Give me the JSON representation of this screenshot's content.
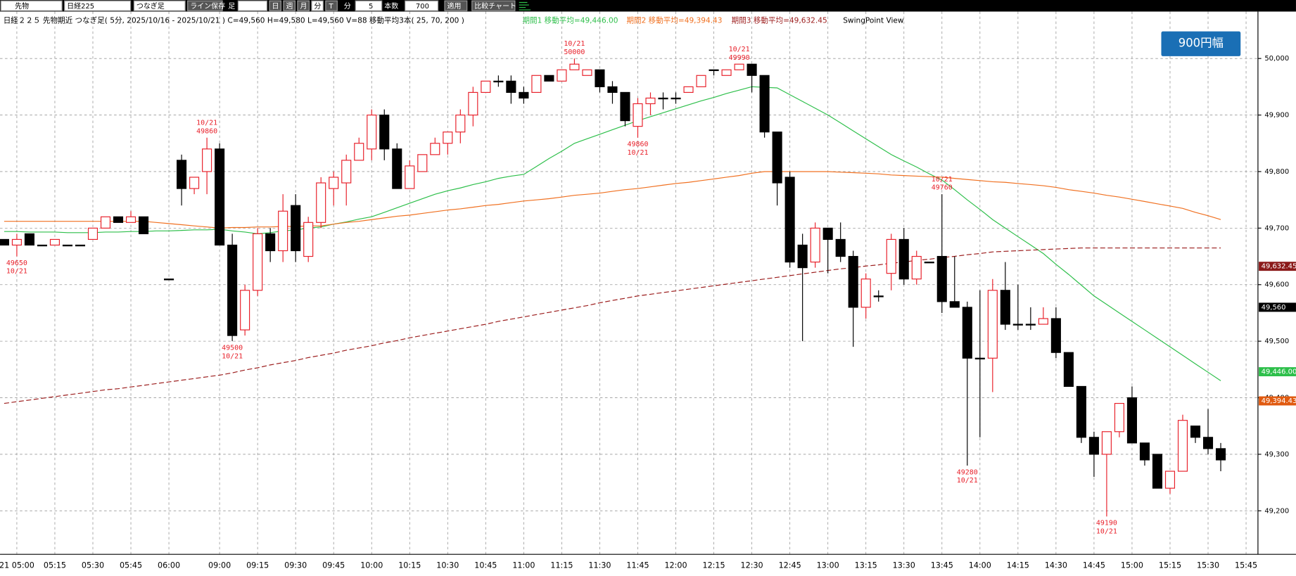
{
  "toolbar": {
    "market": "先物",
    "symbol": "日経225",
    "mode": "つなぎ足",
    "save": "ライン保存",
    "bar": "足",
    "day": "日",
    "week": "週",
    "month": "月",
    "minute": "分",
    "tick": "T",
    "unit": "分",
    "interval": "5",
    "count_label": "本数",
    "count": "700",
    "apply": "適用",
    "compare": "比較チャート"
  },
  "info": {
    "main": "日経２２５ 先物期近 つなぎ足( 5分, 2025/10/16 - 2025/10/21 ) C=49,560 H=49,580 L=49,560 V=88 移動平均3本( 25, 70, 200 )",
    "ma1": "期間1 移動平均=49,446.00",
    "ma2": "期間2 移動平均=49,394.43",
    "ma3": "期間3 移動平均=49,632.45",
    "view": "SwingPoint View"
  },
  "button": "900円幅",
  "chart_data": {
    "type": "candlestick",
    "categories": [
      null,
      "21 05:00",
      null,
      null,
      "05:15",
      null,
      null,
      "05:30",
      null,
      null,
      "05:45",
      null,
      null,
      "06:00",
      null,
      null,
      null,
      "09:00",
      null,
      null,
      "09:15",
      null,
      null,
      "09:30",
      null,
      null,
      "09:45",
      null,
      null,
      "10:00",
      null,
      null,
      "10:15",
      null,
      null,
      "10:30",
      null,
      null,
      "10:45",
      null,
      null,
      "11:00",
      null,
      null,
      "11:15",
      null,
      null,
      "11:30",
      null,
      null,
      "11:45",
      null,
      null,
      "12:00",
      null,
      null,
      "12:15",
      null,
      null,
      "12:30",
      null,
      null,
      "12:45",
      null,
      null,
      "13:00",
      null,
      null,
      "13:15",
      null,
      null,
      "13:30",
      null,
      null,
      "13:45",
      null,
      null,
      "14:00",
      null,
      null,
      "14:15",
      null,
      null,
      "14:30",
      null,
      null,
      "14:45",
      null,
      null,
      "15:00",
      null,
      null,
      "15:15",
      null,
      null,
      "15:30",
      null,
      null,
      "15:45"
    ],
    "open": [
      49680,
      49670,
      49690,
      49670,
      49670,
      49670,
      49670,
      49680,
      49700,
      49720,
      49710,
      49720,
      null,
      49610,
      49820,
      49770,
      49800,
      49840,
      49670,
      49520,
      49590,
      49690,
      49660,
      49740,
      49650,
      49710,
      49770,
      49780,
      49820,
      49840,
      49900,
      49840,
      49770,
      49800,
      49830,
      49850,
      49870,
      49900,
      49940,
      49960,
      49960,
      49940,
      49940,
      49970,
      49960,
      49980,
      49970,
      49980,
      49950,
      49940,
      49880,
      49920,
      49930,
      49930,
      49940,
      49950,
      49980,
      49970,
      49980,
      49990,
      49970,
      49870,
      49790,
      49670,
      49640,
      49700,
      49680,
      49650,
      49560,
      49580,
      49620,
      49680,
      49610,
      49640,
      49650,
      49570,
      49560,
      49470,
      49470,
      49590,
      49530,
      49530,
      49530,
      49540,
      49480,
      49420,
      49330,
      49300,
      49340,
      49400,
      49320,
      49300,
      49240,
      49270,
      49350,
      49330,
      49310,
      null,
      null
    ],
    "high": [
      49680,
      49690,
      49690,
      49670,
      49680,
      49670,
      49670,
      49700,
      49720,
      49720,
      49730,
      49720,
      null,
      49610,
      49830,
      49790,
      49860,
      49850,
      49690,
      49600,
      49700,
      49700,
      49760,
      49760,
      49720,
      49790,
      49800,
      49830,
      49860,
      49910,
      49910,
      49850,
      49820,
      49830,
      49860,
      49870,
      49910,
      49950,
      49960,
      49970,
      49970,
      49950,
      49970,
      49970,
      49980,
      50000,
      49980,
      49980,
      49960,
      49940,
      49930,
      49940,
      49940,
      49940,
      49950,
      49970,
      49980,
      49980,
      49990,
      49990,
      49970,
      49870,
      49800,
      49690,
      49710,
      49700,
      49710,
      49660,
      49620,
      49590,
      49690,
      49700,
      49660,
      49640,
      49760,
      49650,
      49570,
      49590,
      49610,
      49640,
      49600,
      49560,
      49560,
      49560,
      49480,
      49420,
      49340,
      49340,
      49390,
      49420,
      49320,
      49300,
      49270,
      49370,
      49350,
      49380,
      49320,
      null,
      null
    ],
    "low": [
      49670,
      49650,
      49670,
      49670,
      49670,
      49670,
      49670,
      49680,
      49700,
      49710,
      49710,
      49690,
      null,
      49610,
      49740,
      49760,
      49760,
      49670,
      49500,
      49510,
      49580,
      49640,
      49640,
      49640,
      49640,
      49700,
      49740,
      49740,
      49820,
      49820,
      49820,
      49770,
      49770,
      49800,
      49830,
      49830,
      49850,
      49880,
      49940,
      49950,
      49920,
      49920,
      49940,
      49960,
      49960,
      49980,
      49970,
      49940,
      49920,
      49880,
      49860,
      49900,
      49910,
      49920,
      49940,
      49950,
      49970,
      49970,
      49980,
      49940,
      49860,
      49740,
      49630,
      49500,
      49630,
      49620,
      49640,
      49490,
      49540,
      49570,
      49590,
      49600,
      49600,
      49640,
      49550,
      49560,
      49280,
      49330,
      49410,
      49520,
      49520,
      49520,
      49530,
      49470,
      49420,
      49320,
      49260,
      49190,
      49330,
      49320,
      49280,
      49240,
      49230,
      49270,
      49320,
      49300,
      49270,
      null,
      null
    ],
    "close": [
      49670,
      49680,
      49670,
      49670,
      49680,
      49670,
      49670,
      49700,
      49720,
      49710,
      49720,
      49690,
      null,
      49610,
      49770,
      49790,
      49840,
      49670,
      49510,
      49590,
      49690,
      49660,
      49730,
      49660,
      49710,
      49780,
      49790,
      49820,
      49850,
      49900,
      49840,
      49770,
      49810,
      49830,
      49850,
      49870,
      49900,
      49940,
      49960,
      49960,
      49940,
      49930,
      49970,
      49960,
      49980,
      49990,
      49980,
      49950,
      49940,
      49890,
      49920,
      49930,
      49930,
      49930,
      49950,
      49970,
      49980,
      49980,
      49990,
      49970,
      49870,
      49780,
      49640,
      49630,
      49700,
      49680,
      49650,
      49560,
      49610,
      49580,
      49680,
      49610,
      49650,
      49640,
      49570,
      49560,
      49470,
      49470,
      49590,
      49530,
      49530,
      49530,
      49540,
      49480,
      49420,
      49330,
      49300,
      49340,
      49390,
      49320,
      49290,
      49240,
      49270,
      49360,
      49330,
      49310,
      49290,
      null,
      null
    ],
    "up_color": "#e8202a",
    "down_color": "#000000",
    "series": [
      {
        "color": "#2dbf4a",
        "dashed": false,
        "values": [
          49694,
          49694,
          49693,
          49693,
          49693,
          49692,
          49692,
          49692,
          49693,
          49693,
          49694,
          49694,
          49695,
          49695,
          49696,
          49697,
          49697,
          49698,
          49695,
          49693,
          49690,
          49692,
          49695,
          49697,
          49700,
          49702,
          49707,
          49711,
          49716,
          49720,
          49728,
          49736,
          49744,
          49752,
          49760,
          49766,
          49771,
          49777,
          49782,
          49788,
          49792,
          49795,
          49809,
          49823,
          49836,
          49850,
          49858,
          49866,
          49874,
          49882,
          49890,
          49897,
          49904,
          49911,
          49918,
          49925,
          49931,
          49938,
          49944,
          49950,
          49949,
          49948,
          49936,
          49924,
          49912,
          49900,
          49886,
          49872,
          49858,
          49844,
          49830,
          49819,
          49808,
          49796,
          49785,
          49768,
          49750,
          49733,
          49715,
          49700,
          49685,
          49670,
          49655,
          49636,
          49618,
          49599,
          49580,
          49565,
          49550,
          49535,
          49520,
          49505,
          49490,
          49475,
          49460,
          49445,
          49430,
          null,
          null
        ]
      },
      {
        "color": "#f07020",
        "dashed": false,
        "values": [
          49712,
          49712,
          49712,
          49712,
          49712,
          49712,
          49712,
          49712,
          49712,
          49712,
          49712,
          49712,
          49710,
          49708,
          49706,
          49704,
          49702,
          49700,
          49701,
          49701,
          49702,
          49702,
          49703,
          49703,
          49704,
          49704,
          49707,
          49710,
          49712,
          49715,
          49718,
          49721,
          49723,
          49726,
          49729,
          49732,
          49734,
          49737,
          49740,
          49742,
          49745,
          49748,
          49750,
          49752,
          49755,
          49758,
          49760,
          49762,
          49765,
          49768,
          49770,
          49773,
          49776,
          49779,
          49781,
          49784,
          49787,
          49790,
          49793,
          49797,
          49800,
          49800,
          49800,
          49800,
          49800,
          49800,
          49799,
          49798,
          49797,
          49796,
          49794,
          49793,
          49792,
          49791,
          49790,
          49788,
          49786,
          49784,
          49782,
          49781,
          49779,
          49777,
          49775,
          49772,
          49768,
          49765,
          49762,
          49758,
          49755,
          49751,
          49747,
          49743,
          49739,
          49735,
          49728,
          49722,
          49715,
          null,
          null
        ]
      },
      {
        "color": "#9b1b1b",
        "dashed": true,
        "values": [
          49390,
          49393,
          49396,
          49399,
          49402,
          49405,
          49408,
          49411,
          49414,
          49416,
          49419,
          49422,
          49425,
          49428,
          49431,
          49434,
          49437,
          49440,
          49444,
          49449,
          49453,
          49458,
          49462,
          49466,
          49471,
          49475,
          49479,
          49484,
          49488,
          49492,
          49497,
          49501,
          49506,
          49510,
          49514,
          49518,
          49522,
          49526,
          49530,
          49535,
          49539,
          49543,
          49547,
          49551,
          49555,
          49559,
          49563,
          49568,
          49572,
          49576,
          49580,
          49583,
          49586,
          49589,
          49592,
          49595,
          49598,
          49601,
          49604,
          49607,
          49610,
          49613,
          49616,
          49619,
          49622,
          49625,
          49628,
          49630,
          49633,
          49635,
          49638,
          49640,
          49643,
          49645,
          49648,
          49650,
          49653,
          49655,
          49658,
          49659,
          49660,
          49661,
          49662,
          49663,
          49664,
          49665,
          49665,
          49665,
          49665,
          49665,
          49665,
          49665,
          49665,
          49665,
          49665,
          49665,
          49665,
          null,
          null
        ]
      }
    ],
    "swing_points": [
      {
        "kind": "low",
        "price": 49650,
        "date": "10/21"
      },
      {
        "kind": "high",
        "price": 49860,
        "date": "10/21"
      },
      {
        "kind": "low",
        "price": 49500,
        "date": "10/21"
      },
      {
        "kind": "high",
        "price": 50000,
        "date": "10/21"
      },
      {
        "kind": "low",
        "price": 49860,
        "date": "10/21"
      },
      {
        "kind": "high",
        "price": 49990,
        "date": "10/21"
      },
      {
        "kind": "high",
        "price": 49760,
        "date": "10/21"
      },
      {
        "kind": "low",
        "price": 49280,
        "date": "10/21"
      },
      {
        "kind": "low",
        "price": 49190,
        "date": "10/21"
      }
    ],
    "price_marks": [
      {
        "value": 49632.45,
        "label": "49,632.45",
        "color": "#8b1a1a"
      },
      {
        "value": 49560,
        "label": "49,560",
        "color": "#000000"
      },
      {
        "value": 49446,
        "label": "49,446.00",
        "color": "#2dbf4a"
      },
      {
        "value": 49394.43,
        "label": "49,394.43",
        "color": "#e05a10"
      }
    ],
    "ylim": [
      49123,
      50083
    ],
    "yticks": [
      {
        "value": 49200,
        "label": "49,200"
      },
      {
        "value": 49300,
        "label": "49,300"
      },
      {
        "value": 49400,
        "label": "49,400"
      },
      {
        "value": 49500,
        "label": "49,500"
      },
      {
        "value": 49600,
        "label": "49,600"
      },
      {
        "value": 49700,
        "label": "49,700"
      },
      {
        "value": 49800,
        "label": "49,800"
      },
      {
        "value": 49900,
        "label": "49,900"
      },
      {
        "value": 50000,
        "label": "50,000"
      }
    ],
    "grid": true
  }
}
